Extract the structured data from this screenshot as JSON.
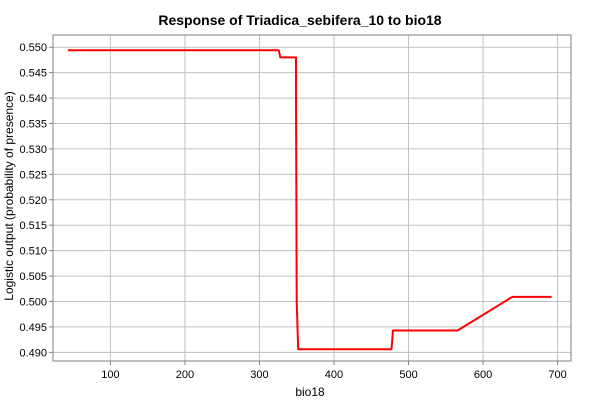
{
  "chart_data": {
    "type": "line",
    "title": "Response of Triadica_sebifera_10 to bio18",
    "xlabel": "bio18",
    "ylabel": "Logistic output (probability of presence)",
    "xlim": [
      23,
      718
    ],
    "ylim": [
      0.4883,
      0.5524
    ],
    "xticks": [
      100,
      200,
      300,
      400,
      500,
      600,
      700
    ],
    "yticks": [
      0.49,
      0.495,
      0.5,
      0.505,
      0.51,
      0.515,
      0.52,
      0.525,
      0.53,
      0.535,
      0.54,
      0.545,
      0.55
    ],
    "ytick_labels": [
      "0.490",
      "0.495",
      "0.500",
      "0.505",
      "0.510",
      "0.515",
      "0.520",
      "0.525",
      "0.530",
      "0.535",
      "0.540",
      "0.545",
      "0.550"
    ],
    "grid": true,
    "series": [
      {
        "color": "#ff0000",
        "x": [
          43,
          326,
          328,
          349,
          349,
          350,
          352,
          477,
          478,
          479,
          566,
          568,
          638,
          640,
          692
        ],
        "y": [
          0.5494,
          0.5494,
          0.548,
          0.548,
          0.542,
          0.5,
          0.4906,
          0.4906,
          0.492,
          0.4943,
          0.4943,
          0.4945,
          0.5008,
          0.5009,
          0.5009
        ]
      }
    ]
  }
}
